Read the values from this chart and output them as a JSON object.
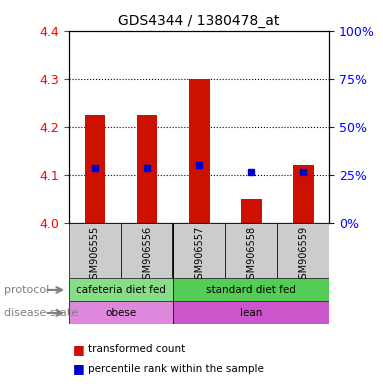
{
  "title": "GDS4344 / 1380478_at",
  "samples": [
    "GSM906555",
    "GSM906556",
    "GSM906557",
    "GSM906558",
    "GSM906559"
  ],
  "bar_tops": [
    4.225,
    4.225,
    4.3,
    4.05,
    4.12
  ],
  "blue_dots": [
    4.115,
    4.115,
    4.12,
    4.105,
    4.105
  ],
  "ymin": 4.0,
  "ymax": 4.4,
  "yticks": [
    4.0,
    4.1,
    4.2,
    4.3,
    4.4
  ],
  "bar_color": "#cc1100",
  "dot_color": "#0000cc",
  "protocol_groups": [
    {
      "label": "cafeteria diet fed",
      "samples": [
        0,
        1
      ],
      "color": "#88dd88"
    },
    {
      "label": "standard diet fed",
      "samples": [
        2,
        3,
        4
      ],
      "color": "#55cc55"
    }
  ],
  "disease_groups": [
    {
      "label": "obese",
      "samples": [
        0,
        1
      ],
      "color": "#dd88dd"
    },
    {
      "label": "lean",
      "samples": [
        2,
        3,
        4
      ],
      "color": "#cc55cc"
    }
  ],
  "sample_bg_color": "#cccccc",
  "legend_items": [
    {
      "label": "transformed count",
      "color": "#cc1100"
    },
    {
      "label": "percentile rank within the sample",
      "color": "#0000cc"
    }
  ],
  "pct_labels": [
    "0%",
    "25%",
    "50%",
    "75%",
    "100%"
  ]
}
